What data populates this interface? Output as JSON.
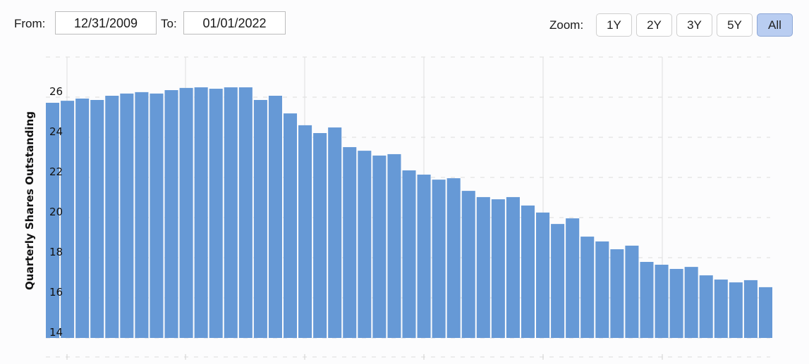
{
  "range_selector": {
    "from_label": "From:",
    "from_value": "12/31/2009",
    "to_label": "To:",
    "to_value": "01/01/2022"
  },
  "zoom": {
    "label": "Zoom:",
    "buttons": [
      "1Y",
      "2Y",
      "3Y",
      "5Y",
      "All"
    ],
    "active": "All",
    "active_color": "#b9cdf1"
  },
  "chart_data": {
    "type": "bar",
    "ylabel": "Quarterly Shares Outstanding",
    "xlabel": "",
    "ylim": [
      14,
      28
    ],
    "yticks": [
      "14",
      "16",
      "18",
      "20",
      "22",
      "24",
      "26"
    ],
    "grid": true,
    "bar_color": "#6699d6",
    "values": [
      25.72,
      25.82,
      25.93,
      25.86,
      26.07,
      26.18,
      26.25,
      26.18,
      26.35,
      26.46,
      26.49,
      26.42,
      26.49,
      26.49,
      25.86,
      26.07,
      25.19,
      24.6,
      24.21,
      24.49,
      23.51,
      23.33,
      23.09,
      23.16,
      22.35,
      22.14,
      21.89,
      21.96,
      21.33,
      21.02,
      20.91,
      21.02,
      20.6,
      20.25,
      19.68,
      19.96,
      19.05,
      18.81,
      18.42,
      18.6,
      17.79,
      17.65,
      17.44,
      17.54,
      17.12,
      16.91,
      16.77,
      16.88,
      16.53
    ]
  }
}
